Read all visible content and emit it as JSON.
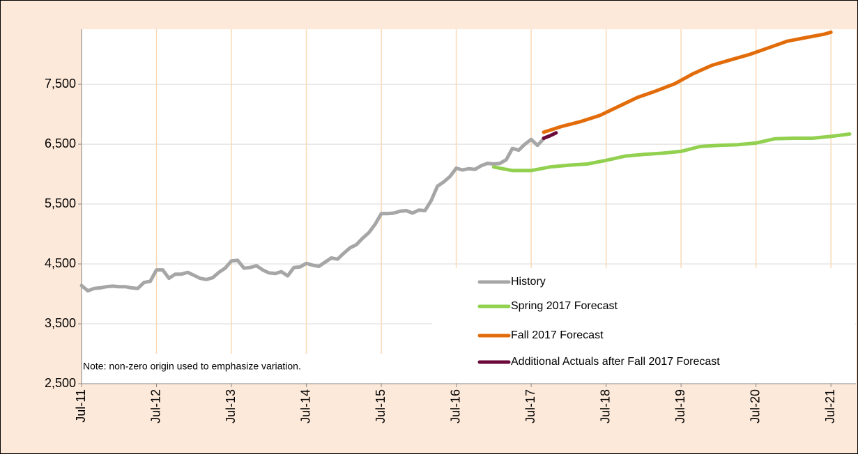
{
  "chart_data": {
    "type": "line",
    "note": "Note: non-zero origin used to emphasize variation.",
    "xlim": [
      "2011-07",
      "2021-11"
    ],
    "xticks": [
      {
        "value": "2011-07",
        "label": "Jul-11"
      },
      {
        "value": "2012-07",
        "label": "Jul-12"
      },
      {
        "value": "2013-07",
        "label": "Jul-13"
      },
      {
        "value": "2014-07",
        "label": "Jul-14"
      },
      {
        "value": "2015-07",
        "label": "Jul-15"
      },
      {
        "value": "2016-07",
        "label": "Jul-16"
      },
      {
        "value": "2017-07",
        "label": "Jul-17"
      },
      {
        "value": "2018-07",
        "label": "Jul-18"
      },
      {
        "value": "2019-07",
        "label": "Jul-19"
      },
      {
        "value": "2020-07",
        "label": "Jul-20"
      },
      {
        "value": "2021-07",
        "label": "Jul-21"
      }
    ],
    "ylim": [
      2500,
      8420
    ],
    "yticks": [
      {
        "value": 2500,
        "label": "2,500"
      },
      {
        "value": 3500,
        "label": "3,500"
      },
      {
        "value": 4500,
        "label": "4,500"
      },
      {
        "value": 5500,
        "label": "5,500"
      },
      {
        "value": 6500,
        "label": "6,500"
      },
      {
        "value": 7500,
        "label": "7,500"
      }
    ],
    "grid": true,
    "legend": "lower right",
    "series": [
      {
        "name": "History",
        "color": "#a6a6a6",
        "x": [
          "2011-07",
          "2011-08",
          "2011-09",
          "2011-10",
          "2011-11",
          "2011-12",
          "2012-01",
          "2012-02",
          "2012-03",
          "2012-04",
          "2012-05",
          "2012-06",
          "2012-07",
          "2012-08",
          "2012-09",
          "2012-10",
          "2012-11",
          "2012-12",
          "2013-01",
          "2013-02",
          "2013-03",
          "2013-04",
          "2013-05",
          "2013-06",
          "2013-07",
          "2013-08",
          "2013-09",
          "2013-10",
          "2013-11",
          "2013-12",
          "2014-01",
          "2014-02",
          "2014-03",
          "2014-04",
          "2014-05",
          "2014-06",
          "2014-07",
          "2014-08",
          "2014-09",
          "2014-10",
          "2014-11",
          "2014-12",
          "2015-01",
          "2015-02",
          "2015-03",
          "2015-04",
          "2015-05",
          "2015-06",
          "2015-07",
          "2015-08",
          "2015-09",
          "2015-10",
          "2015-11",
          "2015-12",
          "2016-01",
          "2016-02",
          "2016-03",
          "2016-04",
          "2016-05",
          "2016-06",
          "2016-07",
          "2016-08",
          "2016-09",
          "2016-10",
          "2016-11",
          "2016-12",
          "2017-01",
          "2017-02",
          "2017-03",
          "2017-04",
          "2017-05",
          "2017-06",
          "2017-07",
          "2017-08",
          "2017-09"
        ],
        "values": [
          4140,
          4050,
          4090,
          4100,
          4120,
          4130,
          4120,
          4120,
          4100,
          4090,
          4190,
          4210,
          4400,
          4400,
          4260,
          4330,
          4330,
          4360,
          4310,
          4260,
          4240,
          4270,
          4360,
          4430,
          4550,
          4560,
          4430,
          4440,
          4470,
          4400,
          4350,
          4340,
          4370,
          4300,
          4440,
          4450,
          4510,
          4480,
          4460,
          4530,
          4600,
          4580,
          4680,
          4770,
          4820,
          4930,
          5020,
          5160,
          5340,
          5340,
          5350,
          5380,
          5390,
          5350,
          5400,
          5390,
          5560,
          5800,
          5870,
          5960,
          6100,
          6070,
          6090,
          6080,
          6140,
          6180,
          6170,
          6180,
          6240,
          6430,
          6400,
          6500,
          6580,
          6480,
          6590
        ]
      },
      {
        "name": "Spring 2017 Forecast",
        "color": "#92d050",
        "x": [
          "2017-01",
          "2017-04",
          "2017-07",
          "2017-10",
          "2018-01",
          "2018-04",
          "2018-07",
          "2018-10",
          "2019-01",
          "2019-04",
          "2019-07",
          "2019-10",
          "2020-01",
          "2020-04",
          "2020-07",
          "2020-10",
          "2021-01",
          "2021-04",
          "2021-07",
          "2021-10"
        ],
        "values": [
          6120,
          6060,
          6060,
          6120,
          6150,
          6170,
          6230,
          6300,
          6330,
          6350,
          6380,
          6460,
          6480,
          6490,
          6520,
          6590,
          6600,
          6600,
          6630,
          6670
        ]
      },
      {
        "name": "Fall 2017 Forecast",
        "color": "#e36c0a",
        "x": [
          "2017-09",
          "2017-12",
          "2018-03",
          "2018-06",
          "2018-09",
          "2018-12",
          "2019-03",
          "2019-06",
          "2019-09",
          "2019-12",
          "2020-03",
          "2020-06",
          "2020-09",
          "2020-12",
          "2021-03",
          "2021-06",
          "2021-07"
        ],
        "values": [
          6700,
          6800,
          6880,
          6980,
          7130,
          7280,
          7390,
          7510,
          7680,
          7820,
          7910,
          8000,
          8110,
          8220,
          8280,
          8340,
          8370
        ]
      },
      {
        "name": "Additional Actuals after Fall 2017 Forecast",
        "color": "#6b0a3a",
        "x": [
          "2017-09",
          "2017-10",
          "2017-11"
        ],
        "values": [
          6600,
          6640,
          6690
        ]
      }
    ]
  }
}
